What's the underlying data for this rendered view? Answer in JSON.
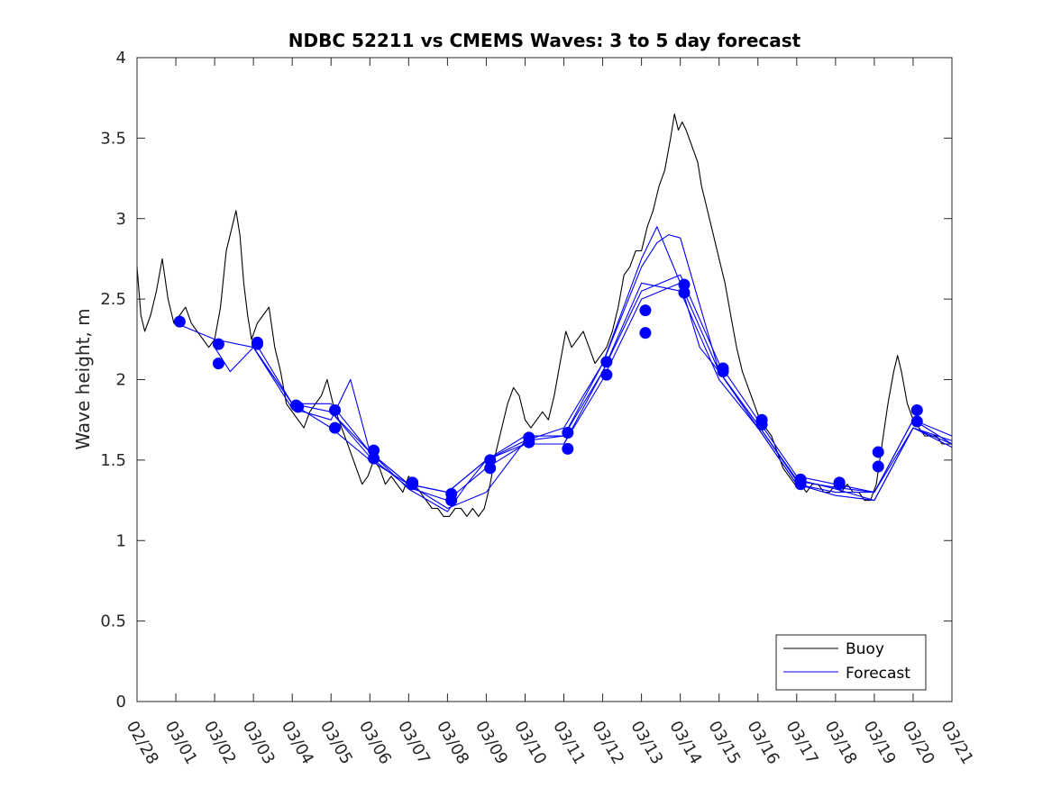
{
  "chart_data": {
    "type": "line",
    "title": "NDBC 52211 vs CMEMS Waves: 3 to 5 day forecast",
    "xlabel": "",
    "ylabel": "Wave height, m",
    "xlim": [
      0,
      21
    ],
    "ylim": [
      0,
      4
    ],
    "x_tick_labels": [
      "02/28",
      "03/01",
      "03/02",
      "03/03",
      "03/04",
      "03/05",
      "03/06",
      "03/07",
      "03/08",
      "03/09",
      "03/10",
      "03/11",
      "03/12",
      "03/13",
      "03/14",
      "03/15",
      "03/16",
      "03/17",
      "03/18",
      "03/19",
      "03/20",
      "03/21"
    ],
    "y_ticks": [
      0,
      0.5,
      1,
      1.5,
      2,
      2.5,
      3,
      3.5,
      4
    ],
    "y_tick_labels": [
      "0",
      "0.5",
      "1",
      "1.5",
      "2",
      "2.5",
      "3",
      "3.5",
      "4"
    ],
    "legend": {
      "position": "bottom-right",
      "entries": [
        {
          "label": "Buoy",
          "color": "#000000"
        },
        {
          "label": "Forecast",
          "color": "#0000ff"
        }
      ]
    },
    "series": [
      {
        "name": "Buoy",
        "color": "#000000",
        "points": [
          [
            0,
            2.7
          ],
          [
            0.1,
            2.4
          ],
          [
            0.2,
            2.3
          ],
          [
            0.35,
            2.4
          ],
          [
            0.5,
            2.55
          ],
          [
            0.65,
            2.75
          ],
          [
            0.8,
            2.5
          ],
          [
            0.95,
            2.35
          ],
          [
            1.1,
            2.4
          ],
          [
            1.25,
            2.45
          ],
          [
            1.4,
            2.35
          ],
          [
            1.55,
            2.3
          ],
          [
            1.7,
            2.25
          ],
          [
            1.85,
            2.2
          ],
          [
            2.0,
            2.25
          ],
          [
            2.15,
            2.45
          ],
          [
            2.3,
            2.8
          ],
          [
            2.45,
            2.95
          ],
          [
            2.55,
            3.05
          ],
          [
            2.65,
            2.9
          ],
          [
            2.75,
            2.6
          ],
          [
            2.85,
            2.4
          ],
          [
            2.95,
            2.25
          ],
          [
            3.1,
            2.35
          ],
          [
            3.25,
            2.4
          ],
          [
            3.4,
            2.45
          ],
          [
            3.55,
            2.2
          ],
          [
            3.7,
            2.05
          ],
          [
            3.85,
            1.85
          ],
          [
            4.0,
            1.8
          ],
          [
            4.15,
            1.75
          ],
          [
            4.3,
            1.7
          ],
          [
            4.45,
            1.8
          ],
          [
            4.6,
            1.85
          ],
          [
            4.75,
            1.9
          ],
          [
            4.9,
            2.0
          ],
          [
            5.05,
            1.85
          ],
          [
            5.2,
            1.75
          ],
          [
            5.35,
            1.65
          ],
          [
            5.5,
            1.55
          ],
          [
            5.65,
            1.45
          ],
          [
            5.8,
            1.35
          ],
          [
            5.95,
            1.4
          ],
          [
            6.1,
            1.5
          ],
          [
            6.25,
            1.45
          ],
          [
            6.4,
            1.35
          ],
          [
            6.55,
            1.4
          ],
          [
            6.7,
            1.35
          ],
          [
            6.85,
            1.3
          ],
          [
            7.0,
            1.4
          ],
          [
            7.15,
            1.35
          ],
          [
            7.3,
            1.3
          ],
          [
            7.45,
            1.25
          ],
          [
            7.6,
            1.2
          ],
          [
            7.75,
            1.2
          ],
          [
            7.9,
            1.15
          ],
          [
            8.05,
            1.15
          ],
          [
            8.2,
            1.2
          ],
          [
            8.35,
            1.2
          ],
          [
            8.5,
            1.15
          ],
          [
            8.65,
            1.2
          ],
          [
            8.8,
            1.15
          ],
          [
            8.95,
            1.2
          ],
          [
            9.1,
            1.35
          ],
          [
            9.25,
            1.55
          ],
          [
            9.4,
            1.7
          ],
          [
            9.55,
            1.85
          ],
          [
            9.7,
            1.95
          ],
          [
            9.85,
            1.9
          ],
          [
            10.0,
            1.75
          ],
          [
            10.15,
            1.7
          ],
          [
            10.3,
            1.75
          ],
          [
            10.45,
            1.8
          ],
          [
            10.6,
            1.75
          ],
          [
            10.75,
            1.9
          ],
          [
            10.9,
            2.1
          ],
          [
            11.05,
            2.3
          ],
          [
            11.2,
            2.2
          ],
          [
            11.35,
            2.25
          ],
          [
            11.5,
            2.3
          ],
          [
            11.65,
            2.2
          ],
          [
            11.8,
            2.1
          ],
          [
            11.95,
            2.15
          ],
          [
            12.1,
            2.2
          ],
          [
            12.25,
            2.3
          ],
          [
            12.4,
            2.45
          ],
          [
            12.55,
            2.65
          ],
          [
            12.7,
            2.7
          ],
          [
            12.85,
            2.8
          ],
          [
            13.0,
            2.8
          ],
          [
            13.15,
            2.95
          ],
          [
            13.3,
            3.05
          ],
          [
            13.45,
            3.2
          ],
          [
            13.6,
            3.3
          ],
          [
            13.75,
            3.5
          ],
          [
            13.85,
            3.65
          ],
          [
            13.95,
            3.55
          ],
          [
            14.05,
            3.6
          ],
          [
            14.15,
            3.55
          ],
          [
            14.3,
            3.45
          ],
          [
            14.45,
            3.35
          ],
          [
            14.55,
            3.2
          ],
          [
            14.7,
            3.05
          ],
          [
            14.85,
            2.9
          ],
          [
            15.0,
            2.75
          ],
          [
            15.15,
            2.6
          ],
          [
            15.3,
            2.4
          ],
          [
            15.45,
            2.2
          ],
          [
            15.6,
            2.05
          ],
          [
            15.75,
            1.95
          ],
          [
            15.9,
            1.85
          ],
          [
            16.05,
            1.75
          ],
          [
            16.2,
            1.7
          ],
          [
            16.35,
            1.65
          ],
          [
            16.5,
            1.55
          ],
          [
            16.65,
            1.45
          ],
          [
            16.8,
            1.4
          ],
          [
            16.95,
            1.35
          ],
          [
            17.1,
            1.35
          ],
          [
            17.25,
            1.3
          ],
          [
            17.4,
            1.35
          ],
          [
            17.55,
            1.35
          ],
          [
            17.7,
            1.3
          ],
          [
            17.85,
            1.3
          ],
          [
            18.0,
            1.35
          ],
          [
            18.15,
            1.3
          ],
          [
            18.3,
            1.35
          ],
          [
            18.45,
            1.3
          ],
          [
            18.6,
            1.3
          ],
          [
            18.75,
            1.25
          ],
          [
            18.9,
            1.25
          ],
          [
            19.05,
            1.35
          ],
          [
            19.2,
            1.6
          ],
          [
            19.35,
            1.85
          ],
          [
            19.5,
            2.05
          ],
          [
            19.6,
            2.15
          ],
          [
            19.7,
            2.05
          ],
          [
            19.85,
            1.85
          ],
          [
            20.0,
            1.75
          ],
          [
            20.15,
            1.7
          ],
          [
            20.3,
            1.65
          ],
          [
            20.45,
            1.65
          ],
          [
            20.6,
            1.65
          ],
          [
            20.75,
            1.6
          ],
          [
            20.9,
            1.6
          ],
          [
            21.0,
            1.6
          ]
        ]
      },
      {
        "name": "Forecast run 1",
        "color": "#0000ff",
        "points": [
          [
            1.0,
            2.35
          ],
          [
            2.0,
            2.25
          ],
          [
            3.0,
            2.2
          ],
          [
            4.0,
            1.85
          ],
          [
            5.0,
            1.85
          ],
          [
            6.0,
            1.55
          ],
          [
            7.0,
            1.35
          ],
          [
            8.0,
            1.2
          ],
          [
            9.0,
            1.3
          ],
          [
            10.0,
            1.62
          ],
          [
            11.0,
            1.65
          ],
          [
            12.0,
            2.1
          ],
          [
            13.0,
            2.7
          ],
          [
            13.4,
            2.85
          ],
          [
            13.7,
            2.9
          ],
          [
            14.0,
            2.88
          ],
          [
            15.0,
            2.05
          ],
          [
            16.0,
            1.72
          ],
          [
            17.0,
            1.37
          ],
          [
            18.0,
            1.33
          ],
          [
            19.0,
            1.3
          ],
          [
            20.0,
            1.75
          ],
          [
            21.0,
            1.6
          ]
        ]
      },
      {
        "name": "Forecast run 2",
        "color": "#0000ff",
        "points": [
          [
            2.0,
            2.2
          ],
          [
            2.4,
            2.05
          ],
          [
            3.0,
            2.2
          ],
          [
            4.0,
            1.85
          ],
          [
            5.0,
            1.8
          ],
          [
            6.0,
            1.52
          ],
          [
            7.0,
            1.33
          ],
          [
            8.0,
            1.25
          ],
          [
            9.0,
            1.45
          ],
          [
            10.0,
            1.6
          ],
          [
            11.0,
            1.6
          ],
          [
            12.0,
            2.0
          ],
          [
            13.0,
            2.5
          ],
          [
            14.0,
            2.6
          ],
          [
            15.0,
            2.05
          ],
          [
            16.0,
            1.7
          ],
          [
            17.0,
            1.35
          ],
          [
            18.0,
            1.3
          ],
          [
            19.0,
            1.3
          ],
          [
            20.0,
            1.7
          ],
          [
            21.0,
            1.62
          ]
        ]
      },
      {
        "name": "Forecast run 3",
        "color": "#0000ff",
        "points": [
          [
            3.0,
            2.2
          ],
          [
            4.0,
            1.82
          ],
          [
            5.0,
            1.75
          ],
          [
            5.5,
            2.0
          ],
          [
            6.0,
            1.55
          ],
          [
            7.0,
            1.35
          ],
          [
            8.0,
            1.3
          ],
          [
            9.0,
            1.5
          ],
          [
            10.0,
            1.65
          ],
          [
            11.0,
            1.65
          ],
          [
            12.0,
            2.05
          ],
          [
            13.0,
            2.55
          ],
          [
            14.0,
            2.65
          ],
          [
            15.0,
            2.1
          ],
          [
            16.0,
            1.75
          ],
          [
            17.0,
            1.4
          ],
          [
            18.0,
            1.35
          ],
          [
            19.0,
            1.3
          ],
          [
            20.0,
            1.75
          ],
          [
            21.0,
            1.65
          ]
        ]
      },
      {
        "name": "Forecast run 4",
        "color": "#0000ff",
        "points": [
          [
            3.0,
            2.25
          ],
          [
            4.0,
            1.85
          ],
          [
            5.0,
            1.7
          ],
          [
            6.0,
            1.5
          ],
          [
            7.0,
            1.35
          ],
          [
            8.0,
            1.3
          ],
          [
            9.0,
            1.5
          ],
          [
            10.0,
            1.6
          ],
          [
            11.0,
            1.6
          ],
          [
            12.0,
            2.05
          ],
          [
            13.0,
            2.6
          ],
          [
            14.0,
            2.55
          ],
          [
            15.0,
            2.0
          ],
          [
            16.0,
            1.7
          ],
          [
            17.0,
            1.35
          ],
          [
            18.0,
            1.28
          ],
          [
            19.0,
            1.25
          ],
          [
            20.0,
            1.7
          ],
          [
            21.0,
            1.6
          ]
        ]
      },
      {
        "name": "Forecast run 5",
        "color": "#0000ff",
        "points": [
          [
            5.0,
            1.8
          ],
          [
            6.0,
            1.55
          ],
          [
            7.0,
            1.32
          ],
          [
            8.0,
            1.18
          ],
          [
            8.5,
            1.35
          ],
          [
            9.0,
            1.5
          ],
          [
            10.0,
            1.62
          ],
          [
            11.0,
            1.7
          ],
          [
            12.0,
            2.1
          ],
          [
            13.0,
            2.75
          ],
          [
            13.4,
            2.95
          ],
          [
            14.0,
            2.6
          ],
          [
            14.5,
            2.2
          ],
          [
            15.0,
            2.05
          ],
          [
            16.0,
            1.72
          ],
          [
            17.0,
            1.38
          ],
          [
            18.0,
            1.32
          ],
          [
            19.0,
            1.25
          ],
          [
            20.0,
            1.7
          ],
          [
            21.0,
            1.58
          ]
        ]
      }
    ],
    "forecast_points": [
      [
        1.1,
        2.36
      ],
      [
        2.1,
        2.22
      ],
      [
        2.1,
        2.1
      ],
      [
        3.1,
        2.22
      ],
      [
        3.1,
        2.23
      ],
      [
        4.1,
        1.84
      ],
      [
        4.15,
        1.83
      ],
      [
        5.1,
        1.81
      ],
      [
        5.1,
        1.7
      ],
      [
        6.1,
        1.56
      ],
      [
        6.1,
        1.51
      ],
      [
        7.1,
        1.36
      ],
      [
        7.1,
        1.35
      ],
      [
        8.1,
        1.29
      ],
      [
        8.1,
        1.25
      ],
      [
        9.1,
        1.5
      ],
      [
        9.1,
        1.45
      ],
      [
        10.1,
        1.64
      ],
      [
        10.1,
        1.61
      ],
      [
        11.1,
        1.67
      ],
      [
        11.1,
        1.57
      ],
      [
        12.1,
        2.11
      ],
      [
        12.1,
        2.03
      ],
      [
        13.1,
        2.43
      ],
      [
        13.1,
        2.29
      ],
      [
        14.1,
        2.59
      ],
      [
        14.1,
        2.54
      ],
      [
        15.1,
        2.07
      ],
      [
        15.1,
        2.05
      ],
      [
        16.1,
        1.75
      ],
      [
        16.1,
        1.72
      ],
      [
        17.1,
        1.38
      ],
      [
        17.1,
        1.35
      ],
      [
        18.1,
        1.36
      ],
      [
        18.1,
        1.35
      ],
      [
        19.1,
        1.55
      ],
      [
        19.1,
        1.46
      ],
      [
        20.1,
        1.81
      ],
      [
        20.1,
        1.74
      ]
    ]
  }
}
